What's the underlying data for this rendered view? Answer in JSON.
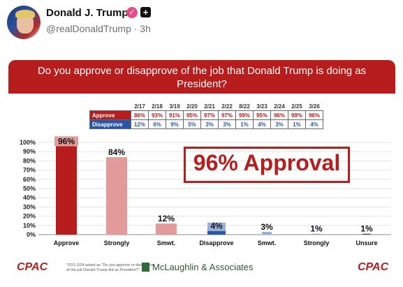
{
  "post": {
    "author_name": "Donald J. Trump",
    "handle": "@realDonaldTrump",
    "time": "· 3h"
  },
  "colors": {
    "accent_red": "#b71d1d",
    "light_red": "#e39a9a",
    "blue": "#2a56a8",
    "light_blue": "#9bb0d8"
  },
  "banner": {
    "text": "Do you approve or disapprove of the job that Donald Trump is doing as President?"
  },
  "table": {
    "dates": [
      "2/17",
      "2/18",
      "3/19",
      "2/20",
      "2/21",
      "2/22",
      "8/22",
      "3/23",
      "2/24",
      "2/25",
      "3/26"
    ],
    "rows": [
      {
        "label": "Approve",
        "values": [
          "86%",
          "93%",
          "91%",
          "95%",
          "97%",
          "97%",
          "99%",
          "95%",
          "96%",
          "99%",
          "96%"
        ]
      },
      {
        "label": "Disapprove",
        "values": [
          "12%",
          "6%",
          "9%",
          "5%",
          "3%",
          "3%",
          "1%",
          "4%",
          "3%",
          "1%",
          "4%"
        ]
      }
    ]
  },
  "callout": "96% Approval",
  "chart_data": {
    "type": "bar",
    "categories": [
      "Approve",
      "Strongly",
      "Smwt.",
      "Disapprove",
      "Smwt.",
      "Strongly",
      "Unsure"
    ],
    "values": [
      96,
      84,
      12,
      4,
      3,
      1,
      1
    ],
    "data_labels": [
      "96%",
      "84%",
      "12%",
      "4%",
      "3%",
      "1%",
      "1%"
    ],
    "ylim": [
      0,
      100
    ],
    "yticks": [
      "0%",
      "10%",
      "20%",
      "30%",
      "40%",
      "50%",
      "60%",
      "70%",
      "80%",
      "90%",
      "100%"
    ],
    "grid": true
  },
  "footer": {
    "logo_left": "CPAC",
    "logo_right": "CPAC",
    "note": "*2/21-2/24 asked as \"Do you approve or disapprove of the job Donald Trump did as President?\"",
    "pollster": "McLaughlin & Associates"
  }
}
